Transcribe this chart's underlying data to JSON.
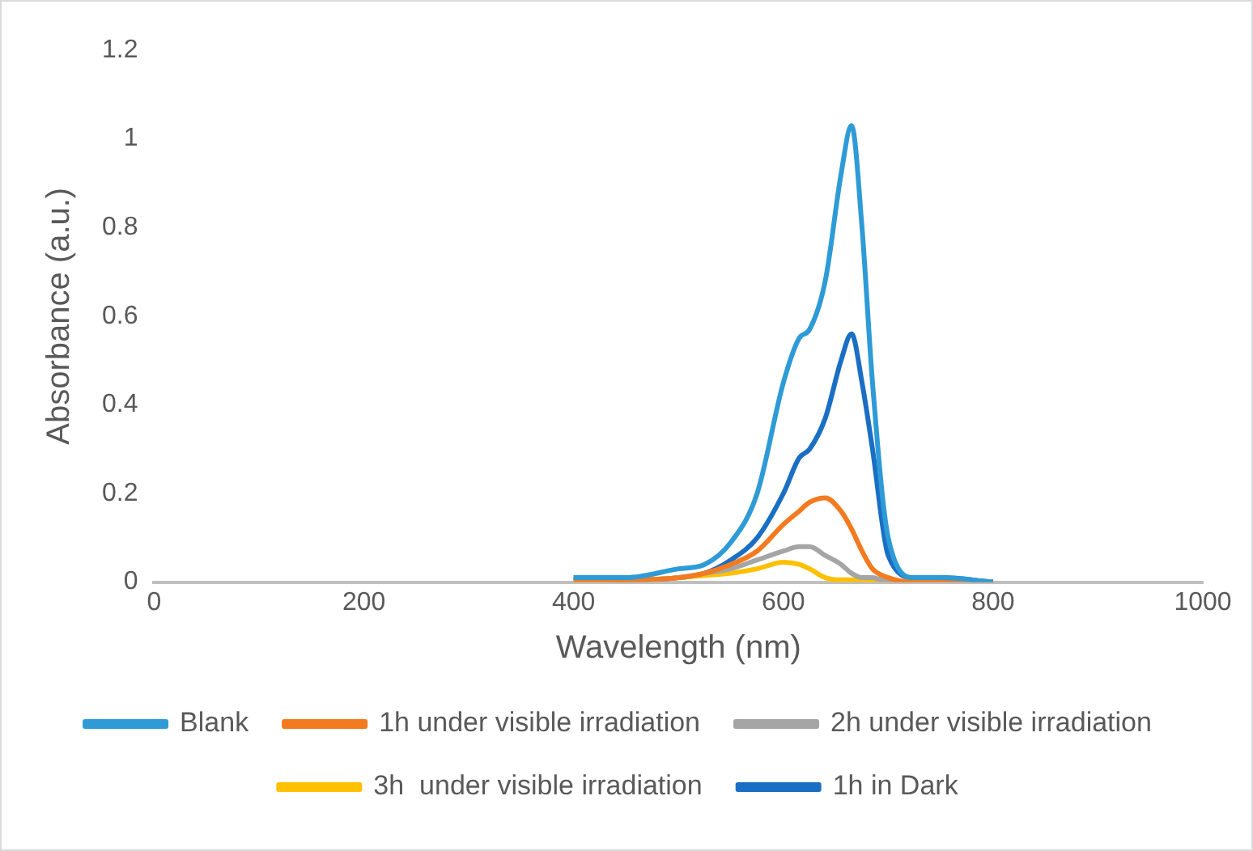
{
  "chart_data": {
    "type": "line",
    "xlabel": "Wavelength (nm)",
    "ylabel": "Absorbance (a.u.)",
    "x": [
      400,
      450,
      500,
      525,
      550,
      575,
      600,
      615,
      625,
      640,
      655,
      665,
      675,
      685,
      700,
      725,
      750,
      800
    ],
    "xlim": [
      0,
      1000
    ],
    "xticks": [
      0,
      200,
      400,
      600,
      800,
      1000
    ],
    "ylim": [
      0,
      1.2
    ],
    "yticks": [
      0,
      0.2,
      0.4,
      0.6,
      0.8,
      1,
      1.2
    ],
    "grid": false,
    "legend": "bottom",
    "marker": "none",
    "line_style": "solid",
    "series": [
      {
        "name": "Blank",
        "color": "#2e9bd6",
        "values": [
          0.01,
          0.01,
          0.03,
          0.04,
          0.09,
          0.2,
          0.45,
          0.55,
          0.57,
          0.68,
          0.92,
          1.03,
          0.8,
          0.45,
          0.1,
          0.01,
          0.01,
          0
        ]
      },
      {
        "name": "1h under visible irradiation",
        "color": "#f47a20",
        "values": [
          0.005,
          0.005,
          0.01,
          0.02,
          0.04,
          0.07,
          0.13,
          0.16,
          0.18,
          0.19,
          0.16,
          0.12,
          0.07,
          0.03,
          0.01,
          0,
          0,
          0
        ]
      },
      {
        "name": "2h under visible irradiation",
        "color": "#a5a5a5",
        "values": [
          0.005,
          0.005,
          0.01,
          0.02,
          0.03,
          0.05,
          0.07,
          0.08,
          0.08,
          0.06,
          0.04,
          0.02,
          0.01,
          0.01,
          0,
          0,
          0,
          0
        ]
      },
      {
        "name": "3h  under visible irradiation",
        "color": "#ffc000",
        "values": [
          0.005,
          0.005,
          0.01,
          0.015,
          0.02,
          0.03,
          0.045,
          0.04,
          0.03,
          0.01,
          0.005,
          0.005,
          0.005,
          0,
          0,
          0,
          null,
          null
        ]
      },
      {
        "name": "1h in Dark",
        "color": "#1a6fc4",
        "values": [
          0.01,
          0.005,
          0.01,
          0.02,
          0.05,
          0.1,
          0.2,
          0.28,
          0.3,
          0.37,
          0.5,
          0.56,
          0.45,
          0.3,
          0.06,
          0.01,
          0.01,
          0
        ]
      }
    ]
  }
}
